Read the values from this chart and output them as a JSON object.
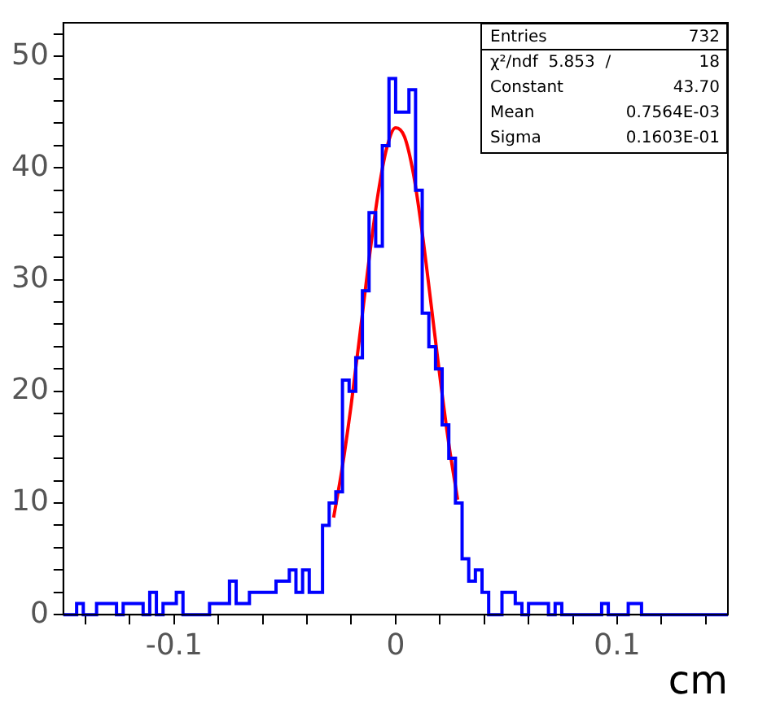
{
  "chart_data": {
    "type": "histogram",
    "xlabel": "cm",
    "bins": [
      -0.15,
      -0.147,
      -0.144,
      -0.141,
      -0.138,
      -0.135,
      -0.132,
      -0.129,
      -0.126,
      -0.123,
      -0.12,
      -0.117,
      -0.114,
      -0.111,
      -0.108,
      -0.105,
      -0.102,
      -0.099,
      -0.096,
      -0.093,
      -0.09,
      -0.087,
      -0.084,
      -0.081,
      -0.078,
      -0.075,
      -0.072,
      -0.069,
      -0.066,
      -0.063,
      -0.06,
      -0.057,
      -0.054,
      -0.051,
      -0.048,
      -0.045,
      -0.042,
      -0.039,
      -0.036,
      -0.033,
      -0.03,
      -0.027,
      -0.024,
      -0.021,
      -0.018,
      -0.015,
      -0.012,
      -0.009,
      -0.006,
      -0.003,
      0,
      0.003,
      0.006,
      0.009,
      0.012,
      0.015,
      0.018,
      0.021,
      0.024,
      0.027,
      0.03,
      0.033,
      0.036,
      0.039,
      0.042,
      0.045,
      0.048,
      0.051,
      0.054,
      0.057,
      0.06,
      0.063,
      0.066,
      0.069,
      0.072,
      0.075,
      0.078,
      0.081,
      0.084,
      0.087,
      0.09,
      0.093,
      0.096,
      0.099,
      0.102,
      0.105,
      0.108,
      0.111,
      0.114,
      0.117,
      0.12,
      0.123,
      0.126,
      0.129,
      0.132,
      0.135,
      0.138,
      0.141,
      0.144,
      0.147,
      0.15
    ],
    "series": [
      {
        "type": "histogram",
        "color": "#0000ff",
        "values": [
          0,
          0,
          1,
          0,
          0,
          1,
          1,
          1,
          0,
          1,
          1,
          1,
          0,
          2,
          0,
          1,
          1,
          2,
          0,
          0,
          0,
          0,
          1,
          1,
          1,
          3,
          1,
          1,
          2,
          2,
          2,
          2,
          3,
          3,
          4,
          2,
          4,
          2,
          2,
          8,
          10,
          11,
          21,
          20,
          23,
          29,
          36,
          33,
          42,
          48,
          45,
          45,
          47,
          38,
          27,
          24,
          22,
          17,
          14,
          10,
          5,
          3,
          4,
          2,
          0,
          0,
          2,
          2,
          1,
          0,
          1,
          1,
          1,
          0,
          1,
          0,
          0,
          0,
          0,
          0,
          0,
          1,
          0,
          0,
          0,
          1,
          1,
          0,
          0,
          0,
          0,
          0,
          0,
          0,
          0,
          0,
          0,
          0,
          0,
          0
        ]
      },
      {
        "type": "line",
        "color": "#ff0000",
        "x": [
          -0.028,
          -0.024,
          -0.02,
          -0.016,
          -0.012,
          -0.008,
          -0.004,
          0,
          0.004,
          0.008,
          0.012,
          0.016,
          0.02,
          0.024,
          0.028
        ],
        "values": [
          8.7,
          13.3,
          18.9,
          25.3,
          31.8,
          37.6,
          41.8,
          43.6,
          42.8,
          39.5,
          34.2,
          27.8,
          21.3,
          15.3,
          10.3
        ]
      }
    ],
    "xlim": [
      -0.15,
      0.15
    ],
    "xticks": [
      {
        "value": -0.14,
        "label": null
      },
      {
        "value": -0.12,
        "label": null
      },
      -0.1,
      {
        "value": -0.08,
        "label": null
      },
      {
        "value": -0.06,
        "label": null
      },
      {
        "value": -0.04,
        "label": null
      },
      {
        "value": -0.02,
        "label": null
      },
      0,
      {
        "value": 0.02,
        "label": null
      },
      {
        "value": 0.04,
        "label": null
      },
      {
        "value": 0.06,
        "label": null
      },
      {
        "value": 0.08,
        "label": null
      },
      0.1,
      {
        "value": 0.12,
        "label": null
      },
      {
        "value": 0.14,
        "label": null
      }
    ],
    "ylim": [
      0,
      53
    ],
    "yticks": [
      0,
      {
        "value": 2,
        "label": null
      },
      {
        "value": 4,
        "label": null
      },
      {
        "value": 6,
        "label": null
      },
      {
        "value": 8,
        "label": null
      },
      10,
      {
        "value": 12,
        "label": null
      },
      {
        "value": 14,
        "label": null
      },
      {
        "value": 16,
        "label": null
      },
      {
        "value": 18,
        "label": null
      },
      20,
      {
        "value": 22,
        "label": null
      },
      {
        "value": 24,
        "label": null
      },
      {
        "value": 26,
        "label": null
      },
      {
        "value": 28,
        "label": null
      },
      30,
      {
        "value": 32,
        "label": null
      },
      {
        "value": 34,
        "label": null
      },
      {
        "value": 36,
        "label": null
      },
      {
        "value": 38,
        "label": null
      },
      40,
      {
        "value": 42,
        "label": null
      },
      {
        "value": 44,
        "label": null
      },
      {
        "value": 46,
        "label": null
      },
      {
        "value": 48,
        "label": null
      },
      50,
      {
        "value": 52,
        "label": null
      }
    ],
    "annotations": [
      "Entries",
      "732",
      "χ²/ndf  5.853  /",
      "18",
      "Constant",
      "43.70",
      "Mean",
      "0.7564E-03",
      "Sigma",
      "0.1603E-01"
    ]
  }
}
